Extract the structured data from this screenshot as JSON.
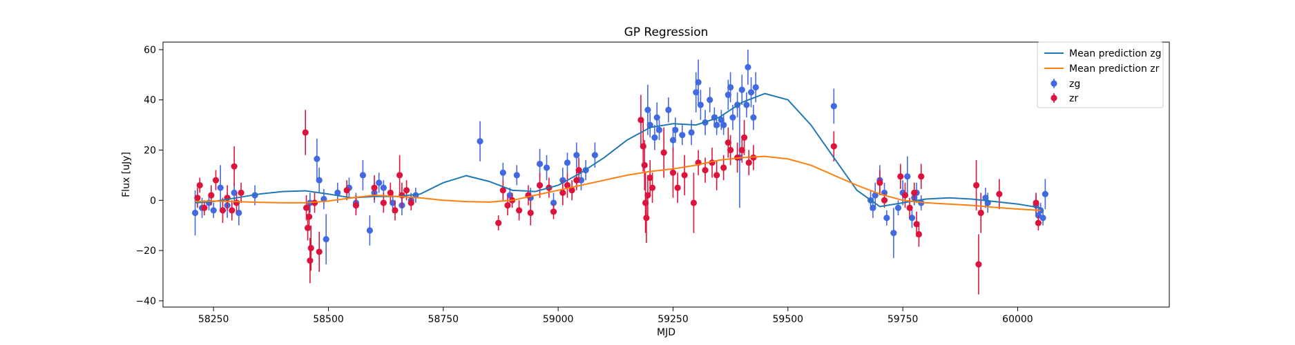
{
  "chart_data": {
    "type": "scatter",
    "title": "GP Regression",
    "xlabel": "MJD",
    "ylabel": "Flux [uJy]",
    "xlim": [
      58140,
      60330
    ],
    "ylim": [
      -42.5,
      63
    ],
    "xticks": [
      58250,
      58500,
      58750,
      59000,
      59250,
      59500,
      59750,
      60000
    ],
    "yticks": [
      -40,
      -20,
      0,
      20,
      40,
      60
    ],
    "grid": false,
    "legend_position": "top-right",
    "lines": [
      {
        "name": "Mean prediction zg",
        "color": "#1f77b4",
        "points": [
          [
            58210,
            -1
          ],
          [
            58250,
            -0.5
          ],
          [
            58300,
            1
          ],
          [
            58350,
            2.5
          ],
          [
            58400,
            3.5
          ],
          [
            58450,
            3.8
          ],
          [
            58500,
            2.5
          ],
          [
            58550,
            1
          ],
          [
            58600,
            1.5
          ],
          [
            58650,
            1.5
          ],
          [
            58700,
            2.5
          ],
          [
            58750,
            7
          ],
          [
            58800,
            9.8
          ],
          [
            58850,
            7.5
          ],
          [
            58900,
            4
          ],
          [
            58950,
            3.5
          ],
          [
            59000,
            6
          ],
          [
            59050,
            11
          ],
          [
            59100,
            17
          ],
          [
            59150,
            24
          ],
          [
            59200,
            29
          ],
          [
            59250,
            30.5
          ],
          [
            59300,
            30
          ],
          [
            59350,
            33
          ],
          [
            59400,
            39
          ],
          [
            59450,
            42.5
          ],
          [
            59500,
            40
          ],
          [
            59550,
            30
          ],
          [
            59600,
            17
          ],
          [
            59650,
            4
          ],
          [
            59700,
            -2.5
          ],
          [
            59750,
            -1
          ],
          [
            59800,
            0.5
          ],
          [
            59850,
            1
          ],
          [
            59900,
            0.5
          ],
          [
            59950,
            -0.5
          ],
          [
            60000,
            -1.5
          ],
          [
            60050,
            -3
          ]
        ]
      },
      {
        "name": "Mean prediction zr",
        "color": "#ff7f0e",
        "points": [
          [
            58210,
            -0.5
          ],
          [
            58250,
            -0.3
          ],
          [
            58300,
            -0.5
          ],
          [
            58350,
            -0.8
          ],
          [
            58400,
            -1
          ],
          [
            58450,
            -1
          ],
          [
            58500,
            -0.3
          ],
          [
            58550,
            1
          ],
          [
            58600,
            2
          ],
          [
            58650,
            1.5
          ],
          [
            58700,
            1
          ],
          [
            58750,
            0
          ],
          [
            58800,
            -0.5
          ],
          [
            58850,
            -0.7
          ],
          [
            58900,
            0
          ],
          [
            58950,
            2
          ],
          [
            59000,
            4
          ],
          [
            59050,
            6
          ],
          [
            59100,
            8
          ],
          [
            59150,
            10
          ],
          [
            59200,
            11.5
          ],
          [
            59250,
            12.5
          ],
          [
            59300,
            14
          ],
          [
            59350,
            16
          ],
          [
            59400,
            17
          ],
          [
            59450,
            17.5
          ],
          [
            59500,
            16.5
          ],
          [
            59550,
            14
          ],
          [
            59600,
            10
          ],
          [
            59650,
            6
          ],
          [
            59700,
            2.5
          ],
          [
            59750,
            0
          ],
          [
            59800,
            -1
          ],
          [
            59850,
            -1.5
          ],
          [
            59900,
            -2
          ],
          [
            59950,
            -2.8
          ],
          [
            60000,
            -3.5
          ],
          [
            60050,
            -4
          ]
        ]
      }
    ],
    "series": [
      {
        "name": "zg",
        "color": "#4169e1",
        "points": [
          [
            58210,
            -5,
            9
          ],
          [
            58225,
            -3,
            4
          ],
          [
            58240,
            -1,
            3
          ],
          [
            58250,
            -4,
            3
          ],
          [
            58265,
            5,
            9
          ],
          [
            58280,
            -2,
            5
          ],
          [
            58295,
            3,
            4
          ],
          [
            58305,
            -5,
            5
          ],
          [
            58340,
            2,
            4
          ],
          [
            58460,
            -1,
            4
          ],
          [
            58475,
            16.5,
            8
          ],
          [
            58480,
            8,
            5
          ],
          [
            58490,
            0.5,
            4
          ],
          [
            58495,
            -15.5,
            10
          ],
          [
            58520,
            3,
            4
          ],
          [
            58545,
            5,
            4
          ],
          [
            58560,
            -1,
            4
          ],
          [
            58575,
            10,
            6
          ],
          [
            58590,
            -12,
            6
          ],
          [
            58600,
            3,
            4
          ],
          [
            58610,
            7,
            4
          ],
          [
            58620,
            5,
            3
          ],
          [
            58640,
            -1,
            4
          ],
          [
            58660,
            -2,
            4
          ],
          [
            58680,
            0,
            3
          ],
          [
            58690,
            2,
            3
          ],
          [
            58830,
            23.5,
            8
          ],
          [
            58880,
            11,
            4
          ],
          [
            58895,
            2,
            3
          ],
          [
            58910,
            10,
            4
          ],
          [
            58940,
            1,
            4
          ],
          [
            58960,
            14.5,
            6
          ],
          [
            58975,
            13,
            5
          ],
          [
            58990,
            -1,
            4
          ],
          [
            59010,
            8,
            5
          ],
          [
            59020,
            15,
            4
          ],
          [
            59040,
            18,
            5
          ],
          [
            59050,
            8,
            4
          ],
          [
            59060,
            12,
            4
          ],
          [
            59080,
            18,
            5
          ],
          [
            59195,
            36,
            10
          ],
          [
            59200,
            30,
            5
          ],
          [
            59210,
            25,
            5
          ],
          [
            59215,
            33,
            6
          ],
          [
            59220,
            28,
            4
          ],
          [
            59240,
            36,
            5
          ],
          [
            59250,
            24,
            5
          ],
          [
            59255,
            28,
            5
          ],
          [
            59270,
            26,
            4
          ],
          [
            59290,
            27,
            5
          ],
          [
            59300,
            43,
            8
          ],
          [
            59305,
            47,
            9
          ],
          [
            59310,
            38,
            6
          ],
          [
            59320,
            31,
            5
          ],
          [
            59330,
            40,
            5
          ],
          [
            59340,
            33,
            4
          ],
          [
            59345,
            30,
            4
          ],
          [
            59355,
            32,
            4
          ],
          [
            59360,
            30,
            4
          ],
          [
            59370,
            42,
            6
          ],
          [
            59375,
            45,
            6
          ],
          [
            59380,
            33,
            5
          ],
          [
            59390,
            38,
            5
          ],
          [
            59395,
            17,
            20
          ],
          [
            59400,
            44,
            6
          ],
          [
            59410,
            38,
            5
          ],
          [
            59413,
            53,
            7
          ],
          [
            59420,
            43,
            6
          ],
          [
            59425,
            33,
            5
          ],
          [
            59430,
            45,
            6
          ],
          [
            59600,
            37.5,
            7
          ],
          [
            59680,
            0,
            4
          ],
          [
            59685,
            -3,
            4
          ],
          [
            59690,
            2,
            5
          ],
          [
            59700,
            8,
            6
          ],
          [
            59710,
            3,
            4
          ],
          [
            59715,
            -7,
            3
          ],
          [
            59730,
            -13,
            10
          ],
          [
            59740,
            -3,
            3
          ],
          [
            59750,
            3,
            5
          ],
          [
            59760,
            9.5,
            8
          ],
          [
            59770,
            -7,
            4
          ],
          [
            59775,
            1,
            3
          ],
          [
            59780,
            3,
            4
          ],
          [
            59790,
            -1,
            3
          ],
          [
            59930,
            1,
            4
          ],
          [
            59935,
            -1,
            4
          ],
          [
            60040,
            -2,
            4
          ],
          [
            60045,
            -6,
            4
          ],
          [
            60050,
            -4,
            3
          ],
          [
            60055,
            -7,
            3
          ],
          [
            60060,
            2.5,
            6
          ]
        ]
      },
      {
        "name": "zr",
        "color": "#dc143c",
        "points": [
          [
            58215,
            1,
            4
          ],
          [
            58220,
            6,
            3
          ],
          [
            58230,
            -3,
            3
          ],
          [
            58245,
            2,
            4
          ],
          [
            58255,
            8,
            4
          ],
          [
            58270,
            -4,
            5
          ],
          [
            58280,
            1,
            5
          ],
          [
            58290,
            -4,
            4
          ],
          [
            58295,
            13.5,
            8
          ],
          [
            58300,
            -1,
            4
          ],
          [
            58310,
            3,
            4
          ],
          [
            58450,
            27,
            9
          ],
          [
            58452,
            -3,
            5
          ],
          [
            58455,
            -11,
            5
          ],
          [
            58458,
            -6.5,
            5
          ],
          [
            58460,
            -24,
            9
          ],
          [
            58462,
            -19,
            9
          ],
          [
            58470,
            -1,
            4
          ],
          [
            58480,
            -20.5,
            8
          ],
          [
            58540,
            4,
            4
          ],
          [
            58560,
            -2,
            4
          ],
          [
            58600,
            5,
            5
          ],
          [
            58620,
            -1,
            4
          ],
          [
            58635,
            3,
            4
          ],
          [
            58645,
            -4,
            4
          ],
          [
            58655,
            10,
            8
          ],
          [
            58660,
            2,
            5
          ],
          [
            58670,
            4,
            4
          ],
          [
            58680,
            -1,
            3
          ],
          [
            58870,
            -9,
            3
          ],
          [
            58880,
            4,
            4
          ],
          [
            58890,
            -2,
            4
          ],
          [
            58900,
            0,
            3
          ],
          [
            58915,
            -4,
            4
          ],
          [
            58935,
            2,
            4
          ],
          [
            58940,
            -5,
            5
          ],
          [
            58960,
            6,
            5
          ],
          [
            58980,
            5,
            4
          ],
          [
            58990,
            -4.5,
            3
          ],
          [
            59010,
            3,
            5
          ],
          [
            59020,
            6,
            5
          ],
          [
            59030,
            4,
            4
          ],
          [
            59040,
            8,
            4
          ],
          [
            59045,
            12,
            5
          ],
          [
            59180,
            32,
            10
          ],
          [
            59185,
            21.5,
            10
          ],
          [
            59188,
            14,
            10
          ],
          [
            59190,
            -1,
            12
          ],
          [
            59192,
            -7,
            10
          ],
          [
            59195,
            2,
            8
          ],
          [
            59200,
            9,
            7
          ],
          [
            59205,
            5,
            6
          ],
          [
            59230,
            19,
            10
          ],
          [
            59250,
            11,
            10
          ],
          [
            59260,
            5,
            6
          ],
          [
            59275,
            10,
            8
          ],
          [
            59295,
            -1,
            12
          ],
          [
            59305,
            15,
            5
          ],
          [
            59320,
            12,
            5
          ],
          [
            59335,
            15,
            6
          ],
          [
            59345,
            10,
            6
          ],
          [
            59360,
            13,
            5
          ],
          [
            59370,
            23,
            6
          ],
          [
            59375,
            20,
            6
          ],
          [
            59390,
            17,
            6
          ],
          [
            59400,
            20,
            5
          ],
          [
            59405,
            25,
            7
          ],
          [
            59415,
            15,
            5
          ],
          [
            59425,
            17,
            5
          ],
          [
            59600,
            21.5,
            6
          ],
          [
            59700,
            7,
            5
          ],
          [
            59710,
            0,
            3
          ],
          [
            59745,
            9.5,
            5
          ],
          [
            59755,
            2,
            5
          ],
          [
            59765,
            -3,
            4
          ],
          [
            59775,
            3,
            4
          ],
          [
            59780,
            -9.5,
            5
          ],
          [
            59785,
            -13.5,
            5
          ],
          [
            59790,
            9.5,
            5
          ],
          [
            59910,
            6,
            10
          ],
          [
            59915,
            -25.5,
            12
          ],
          [
            59920,
            -5,
            8
          ],
          [
            59960,
            2.5,
            6
          ],
          [
            60040,
            -1,
            4
          ],
          [
            60045,
            -9,
            3
          ]
        ]
      }
    ]
  }
}
